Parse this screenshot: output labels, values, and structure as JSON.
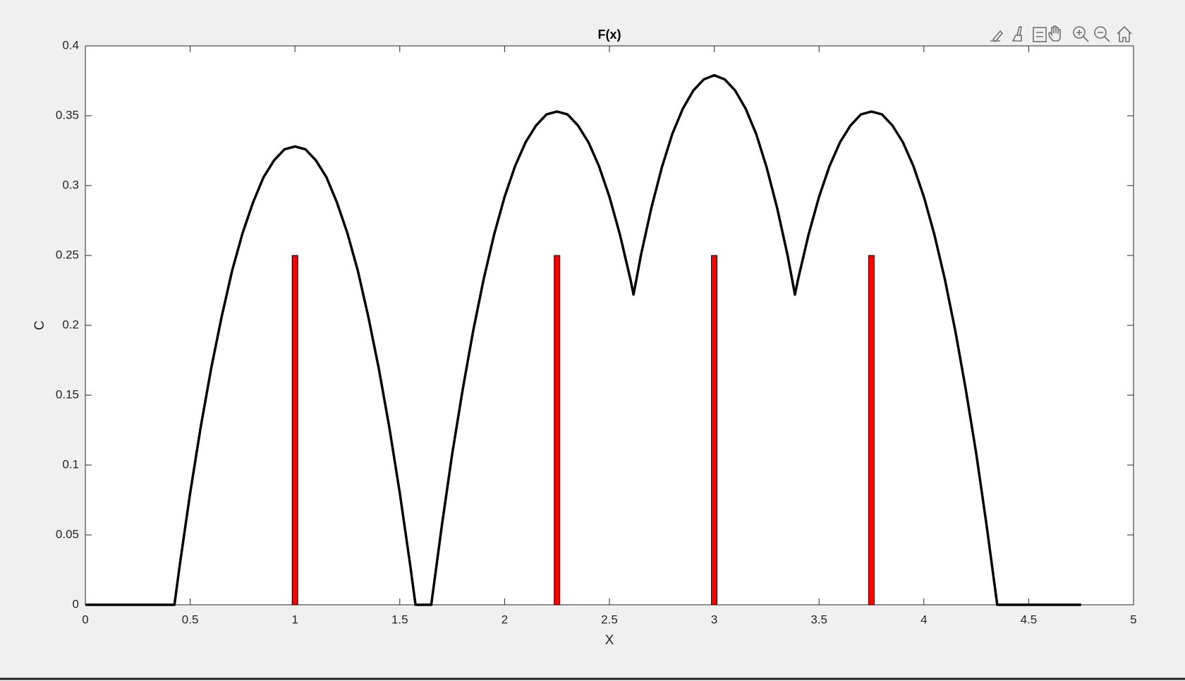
{
  "chart_data": {
    "type": "line",
    "title": "F(x)",
    "x_label": "X",
    "y_label": "C",
    "xlim": [
      0,
      5
    ],
    "xticks": [
      0,
      0.5,
      1,
      1.5,
      2,
      2.5,
      3,
      3.5,
      4,
      4.5,
      5
    ],
    "ylim": [
      0,
      0.4
    ],
    "yticks": [
      0,
      0.05,
      0.1,
      0.15,
      0.2,
      0.25,
      0.3,
      0.35,
      0.4
    ],
    "series": [
      {
        "type": "line",
        "color": "#000000",
        "x": [
          0,
          0.425,
          0.45,
          0.5,
          0.55,
          0.6,
          0.65,
          0.7,
          0.75,
          0.8,
          0.85,
          0.9,
          0.95,
          1,
          1.05,
          1.1,
          1.15,
          1.2,
          1.25,
          1.3,
          1.35,
          1.4,
          1.45,
          1.5,
          1.55,
          1.575,
          1.65,
          1.7,
          1.75,
          1.8,
          1.85,
          1.9,
          1.95,
          2,
          2.05,
          2.1,
          2.15,
          2.2,
          2.25,
          2.3,
          2.35,
          2.4,
          2.45,
          2.5,
          2.55,
          2.6,
          2.615,
          2.65,
          2.7,
          2.75,
          2.8,
          2.85,
          2.9,
          2.95,
          3,
          3.05,
          3.1,
          3.15,
          3.2,
          3.25,
          3.3,
          3.35,
          3.385,
          3.4,
          3.45,
          3.5,
          3.55,
          3.6,
          3.65,
          3.7,
          3.75,
          3.8,
          3.85,
          3.9,
          3.95,
          4,
          4.05,
          4.1,
          4.15,
          4.2,
          4.25,
          4.3,
          4.35,
          4.75
        ],
        "values": [
          0,
          0,
          0.028,
          0.08,
          0.127,
          0.169,
          0.206,
          0.239,
          0.266,
          0.288,
          0.306,
          0.318,
          0.326,
          0.328,
          0.326,
          0.318,
          0.306,
          0.288,
          0.266,
          0.239,
          0.206,
          0.169,
          0.127,
          0.08,
          0.028,
          0,
          0,
          0.056,
          0.108,
          0.154,
          0.196,
          0.233,
          0.265,
          0.292,
          0.314,
          0.331,
          0.343,
          0.351,
          0.353,
          0.351,
          0.343,
          0.331,
          0.314,
          0.292,
          0.265,
          0.233,
          0.222,
          0.25,
          0.284,
          0.313,
          0.337,
          0.355,
          0.368,
          0.376,
          0.379,
          0.376,
          0.368,
          0.355,
          0.337,
          0.313,
          0.284,
          0.25,
          0.222,
          0.233,
          0.265,
          0.292,
          0.314,
          0.331,
          0.343,
          0.351,
          0.353,
          0.351,
          0.343,
          0.331,
          0.314,
          0.292,
          0.265,
          0.233,
          0.196,
          0.154,
          0.108,
          0.056,
          0,
          0
        ]
      },
      {
        "type": "bar",
        "color": "#ff0000",
        "x": [
          1,
          2.25,
          3,
          3.75
        ],
        "values": [
          0.25,
          0.25,
          0.25,
          0.25
        ]
      }
    ]
  }
}
